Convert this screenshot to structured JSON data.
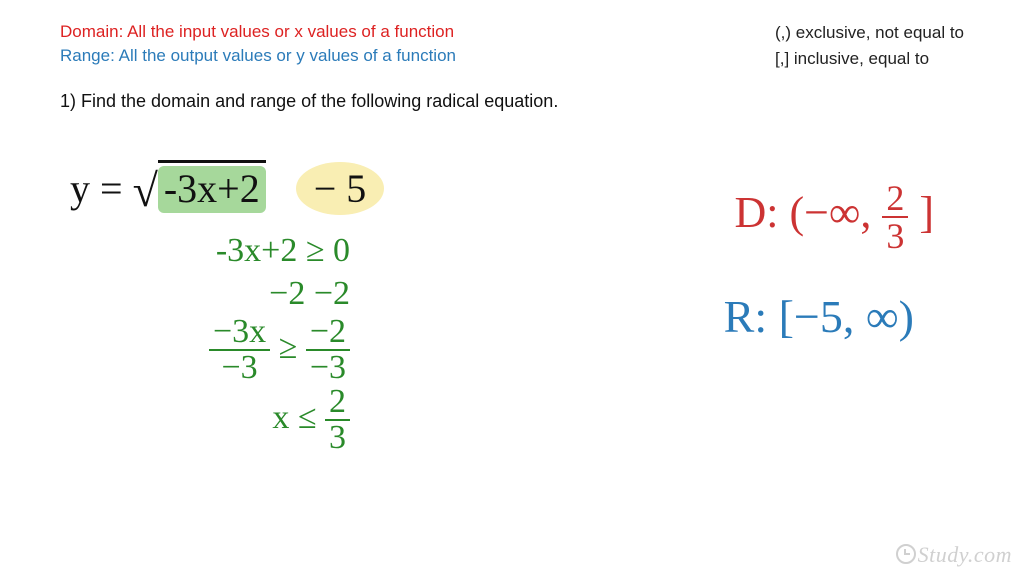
{
  "header": {
    "domain_def": "Domain: All the input values or x values of a function",
    "range_def": "Range: All the output values or y values of a function",
    "notation_paren": "(,) exclusive, not equal to",
    "notation_bracket": "[,] inclusive, equal to",
    "colors": {
      "domain": "#d22",
      "range": "#2b7bb9",
      "text": "#222"
    }
  },
  "question": {
    "label": "1) Find the domain and range of the following radical equation."
  },
  "equation": {
    "lhs": "y =",
    "radicand": "-3x+2",
    "tail": "− 5",
    "highlight_radicand": "#a6d89b",
    "highlight_tail": "#f9eeb3"
  },
  "work": {
    "color": "#2a8a2a",
    "lines": {
      "l1": "-3x+2 ≥ 0",
      "l2": "−2   −2",
      "l3_left_num": "−3x",
      "l3_ge": "≥",
      "l3_right_num": "−2",
      "l3_left_den": "−3",
      "l3_right_den": "−3",
      "l4_lhs": "x ≤",
      "l4_frac_num": "2",
      "l4_frac_den": "3"
    }
  },
  "answers": {
    "domain_prefix": "D: (−∞, ",
    "domain_frac_num": "2",
    "domain_frac_den": "3",
    "domain_suffix": " ]",
    "domain_color": "#c33",
    "range_text": "R: [−5, ∞)",
    "range_color": "#2b7bb9"
  },
  "watermark": "Study.com"
}
